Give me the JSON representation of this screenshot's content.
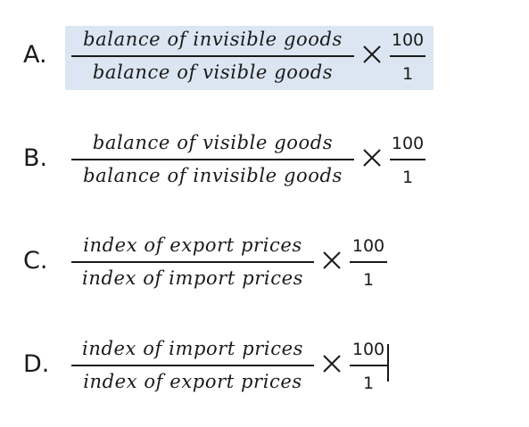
{
  "options": [
    {
      "letter": "A.",
      "numerator": "balance of invisible goods",
      "denominator": "balance of visible goods",
      "times": "×",
      "multiplier_numerator": "100",
      "multiplier_denominator": "1",
      "selected": true
    },
    {
      "letter": "B.",
      "numerator": "balance of visible goods",
      "denominator": "balance of invisible goods",
      "times": "×",
      "multiplier_numerator": "100",
      "multiplier_denominator": "1",
      "selected": false
    },
    {
      "letter": "C.",
      "numerator": "index of export prices",
      "denominator": "index of import prices",
      "times": "×",
      "multiplier_numerator": "100",
      "multiplier_denominator": "1",
      "selected": false
    },
    {
      "letter": "D.",
      "numerator": "index of import prices",
      "denominator": "index of export prices",
      "times": "×",
      "multiplier_numerator": "100",
      "multiplier_denominator": "1",
      "selected": false
    }
  ],
  "colors": {
    "highlight": "#dce6f2",
    "text": "#1a1a1a"
  }
}
